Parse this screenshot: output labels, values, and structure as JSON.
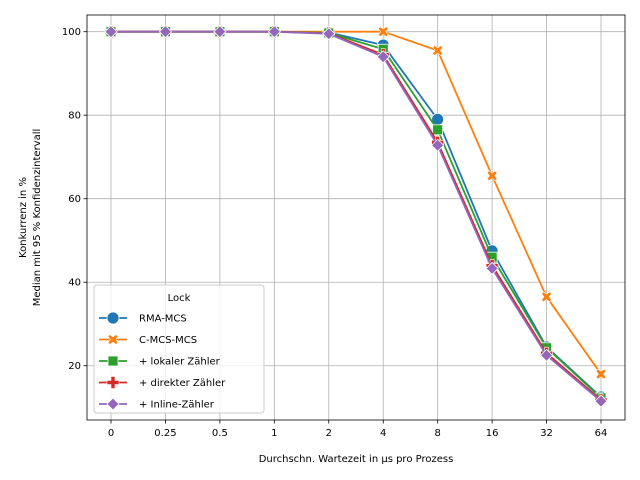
{
  "chart_data": {
    "type": "line",
    "xlabel": "Durchschn. Wartezeit in µs pro Prozess",
    "ylabel_lines": [
      "Konkurrenz in %",
      "Median mit 95 % Konfidenzintervall"
    ],
    "categories": [
      "0",
      "0.25",
      "0.5",
      "1",
      "2",
      "4",
      "8",
      "16",
      "32",
      "64"
    ],
    "yticks": [
      "20",
      "40",
      "60",
      "80",
      "100"
    ],
    "ylim": [
      7,
      104
    ],
    "grid": true,
    "legend": {
      "title": "Lock",
      "placement": "lower-left"
    },
    "series": [
      {
        "name": "RMA-MCS",
        "color": "#1f77b4",
        "marker": "circle",
        "values": [
          100,
          100,
          100,
          100,
          99.8,
          96.8,
          79.0,
          47.5,
          24.5,
          12.5
        ]
      },
      {
        "name": "C-MCS-MCS",
        "color": "#ff7f0e",
        "marker": "x",
        "values": [
          100,
          100,
          100,
          100,
          100,
          100,
          95.5,
          65.5,
          36.5,
          18.0
        ]
      },
      {
        "name": "+ lokaler Zähler",
        "color": "#2ca02c",
        "marker": "square",
        "values": [
          100,
          100,
          100,
          100,
          99.7,
          95.8,
          76.5,
          46.0,
          24.3,
          12.3
        ]
      },
      {
        "name": "+ direkter Zähler",
        "color": "#d62728",
        "marker": "plus",
        "values": [
          100,
          100,
          100,
          100,
          99.6,
          94.5,
          73.5,
          44.0,
          23.0,
          11.8
        ]
      },
      {
        "name": "+ Inline-Zähler",
        "color": "#9467bd",
        "marker": "diamond",
        "values": [
          100,
          100,
          100,
          100,
          99.5,
          94.0,
          72.8,
          43.3,
          22.5,
          11.5
        ]
      }
    ]
  }
}
